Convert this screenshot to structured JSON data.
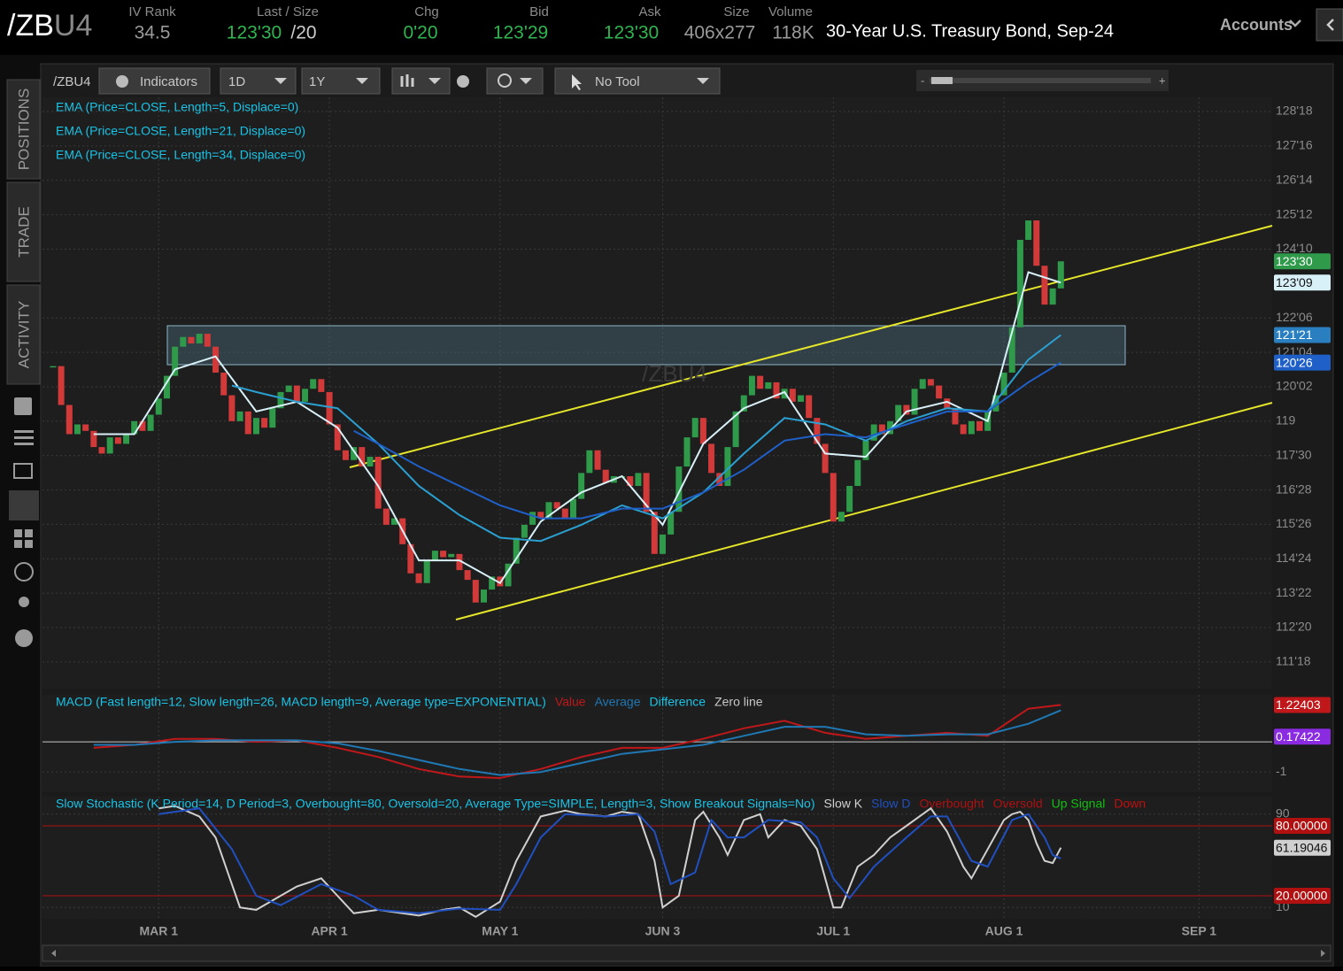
{
  "header": {
    "symbol_root": "/ZB",
    "symbol_month": "U4",
    "fields": [
      {
        "label": "IV Rank",
        "value": "34.5"
      },
      {
        "label": "Last / Size",
        "value": "123'30",
        "extra": "/20"
      },
      {
        "label": "Chg",
        "value": "0'20"
      },
      {
        "label": "Bid",
        "value": "123'29"
      },
      {
        "label": "Ask",
        "value": "123'30"
      },
      {
        "label": "Size",
        "value": "406x277"
      },
      {
        "label": "Volume",
        "value": "118K"
      }
    ],
    "description": "30-Year U.S. Treasury Bond, Sep-24",
    "accounts": "Accounts"
  },
  "toolbar": {
    "symbol": "/ZBU4",
    "indicators": "Indicators",
    "aggregation": "1D",
    "range": "1Y",
    "tool": "No Tool",
    "zoom_out": "-",
    "zoom_in": "+"
  },
  "sidebar": [
    "POSITIONS",
    "TRADE",
    "ACTIVITY"
  ],
  "chart_data": [
    {
      "type": "candlestick",
      "watermark": "/ZBU4",
      "up_color": "#2e9a4a",
      "down_color": "#d23a3a",
      "xlim": [
        -1.3,
        150
      ],
      "ylim": [
        110.74,
        129.0
      ],
      "grid": true,
      "yticks": [
        {
          "value": 128.5625,
          "label": "128'18"
        },
        {
          "value": 127.5,
          "label": "127'16"
        },
        {
          "value": 126.4375,
          "label": "126'14"
        },
        {
          "value": 125.375,
          "label": "125'12"
        },
        {
          "value": 124.3125,
          "label": "124'10"
        },
        {
          "value": 122.1875,
          "label": "122'06"
        },
        {
          "value": 121.125,
          "label": "121'04"
        },
        {
          "value": 120.0625,
          "label": "120'02"
        },
        119,
        {
          "value": 117.9375,
          "label": "117'30"
        },
        {
          "value": 116.875,
          "label": "116'28"
        },
        {
          "value": 115.8125,
          "label": "115'26"
        },
        {
          "value": 114.75,
          "label": "114'24"
        },
        {
          "value": 113.6875,
          "label": "113'22"
        },
        {
          "value": 112.625,
          "label": "112'20"
        },
        {
          "value": 111.5625,
          "label": "111'18"
        }
      ],
      "values": [
        120.7,
        119.5,
        118.6,
        118.9,
        118.7,
        118.2,
        118.0,
        118.5,
        118.3,
        118.6,
        119.0,
        118.7,
        119.2,
        119.7,
        120.4,
        121.3,
        121.6,
        121.4,
        121.7,
        121.3,
        120.5,
        119.8,
        119.0,
        119.3,
        118.6,
        119.1,
        118.8,
        119.4,
        119.9,
        120.1,
        119.6,
        120.0,
        120.3,
        119.9,
        118.9,
        118.1,
        117.8,
        118.2,
        117.6,
        117.9,
        116.3,
        115.8,
        116.0,
        115.2,
        114.3,
        114.0,
        114.7,
        115.0,
        114.8,
        114.9,
        114.4,
        114.1,
        113.4,
        113.8,
        114.2,
        113.9,
        114.6,
        115.4,
        115.8,
        116.2,
        116.0,
        116.5,
        116.3,
        116.0,
        116.6,
        117.4,
        118.1,
        117.5,
        117.1,
        117.3,
        117.3,
        117.0,
        117.4,
        116.2,
        114.9,
        115.5,
        116.2,
        117.6,
        118.5,
        119.1,
        118.3,
        117.4,
        117.0,
        118.2,
        119.3,
        119.8,
        120.4,
        120.0,
        120.2,
        119.7,
        120.0,
        119.6,
        119.8,
        119.1,
        118.3,
        117.4,
        115.9,
        116.2,
        117.0,
        117.8,
        118.4,
        118.9,
        118.6,
        119.0,
        119.5,
        119.2,
        120.0,
        120.3,
        120.1,
        119.7,
        119.4,
        118.9,
        118.6,
        119.0,
        118.7,
        119.3,
        119.8,
        120.5,
        121.9,
        124.6,
        125.2,
        123.8,
        122.6,
        123.1,
        123.9375
      ],
      "series": [
        {
          "name": "EMA (Price=CLOSE, Length=5, Displace=0)",
          "color": "#d8f0f8",
          "x": [
            5,
            10,
            15,
            20,
            25,
            30,
            35,
            40,
            45,
            50,
            55,
            60,
            65,
            70,
            75,
            80,
            85,
            90,
            95,
            100,
            105,
            110,
            115,
            120,
            124
          ],
          "values": [
            118.6,
            118.6,
            120.6,
            121.0,
            119.3,
            119.6,
            118.8,
            117.0,
            114.7,
            114.7,
            114.0,
            115.9,
            116.8,
            117.3,
            115.8,
            118.3,
            119.4,
            119.9,
            118.0,
            117.9,
            119.3,
            119.6,
            119.0,
            123.6,
            123.28
          ]
        },
        {
          "name": "EMA (Price=CLOSE, Length=21, Displace=0)",
          "color": "#2a9fd0",
          "x": [
            22,
            25,
            30,
            35,
            40,
            45,
            50,
            55,
            60,
            65,
            70,
            75,
            80,
            85,
            90,
            95,
            100,
            105,
            110,
            115,
            120,
            124
          ],
          "values": [
            120.1,
            119.9,
            119.6,
            119.4,
            118.3,
            117.0,
            116.1,
            115.4,
            115.3,
            115.8,
            116.4,
            116.0,
            116.8,
            118.0,
            119.1,
            118.9,
            118.4,
            119.0,
            119.4,
            119.3,
            120.9,
            121.66
          ]
        },
        {
          "name": "EMA (Price=CLOSE, Length=34, Displace=0)",
          "color": "#1f5fc8",
          "x": [
            37,
            40,
            45,
            50,
            55,
            60,
            65,
            70,
            75,
            80,
            85,
            90,
            95,
            100,
            105,
            110,
            115,
            120,
            124
          ],
          "values": [
            118.7,
            118.3,
            117.6,
            117.0,
            116.4,
            116.0,
            116.0,
            116.3,
            116.3,
            116.8,
            117.5,
            118.4,
            118.6,
            118.5,
            118.9,
            119.3,
            119.3,
            120.2,
            120.81
          ]
        }
      ],
      "markers": [
        {
          "value": 123.9375,
          "label": "123'30",
          "color": "#2e9a4a"
        },
        {
          "value": 123.28,
          "label": "123'09",
          "color": "#d8f0f8"
        },
        {
          "value": 121.66,
          "label": "121'21",
          "color": "#2a7fc0"
        },
        {
          "value": 120.81,
          "label": "120'26",
          "color": "#1f5fc8"
        }
      ]
    },
    {
      "type": "line",
      "title": "MACD (Fast length=12, Slow length=26, MACD length=9, Average type=EXPONENTIAL)",
      "title_color": "#19c3e6",
      "xlim": [
        -1.3,
        150
      ],
      "ylim": [
        -1.67,
        1.56
      ],
      "yticks": [
        -1
      ],
      "zero_line": true,
      "series": [
        {
          "name": "Value",
          "color": "#c0181a",
          "x": [
            5,
            10,
            15,
            20,
            25,
            30,
            35,
            40,
            45,
            50,
            55,
            60,
            65,
            70,
            75,
            80,
            85,
            90,
            95,
            100,
            105,
            110,
            115,
            120,
            124
          ],
          "values": [
            -0.2,
            -0.1,
            0.1,
            0.1,
            0,
            0.05,
            -0.2,
            -0.5,
            -0.9,
            -1.15,
            -1.2,
            -0.9,
            -0.5,
            -0.2,
            -0.2,
            0.1,
            0.45,
            0.7,
            0.3,
            0.1,
            0.2,
            0.3,
            0.2,
            1.1,
            1.22403
          ]
        },
        {
          "name": "Average",
          "color": "#1f78b4",
          "x": [
            5,
            10,
            15,
            20,
            25,
            30,
            35,
            40,
            45,
            50,
            55,
            60,
            65,
            70,
            75,
            80,
            85,
            90,
            95,
            100,
            105,
            110,
            115,
            120,
            124
          ],
          "values": [
            -0.1,
            -0.1,
            0,
            0.05,
            0.05,
            0.05,
            -0.05,
            -0.3,
            -0.6,
            -0.9,
            -1.1,
            -1.0,
            -0.7,
            -0.4,
            -0.25,
            -0.1,
            0.2,
            0.5,
            0.5,
            0.25,
            0.2,
            0.25,
            0.25,
            0.6,
            1.05
          ]
        }
      ],
      "legend_extras": [
        {
          "name": "Difference",
          "color": "#19c3e6"
        },
        {
          "name": "Zero line",
          "color": "#c8c8c8"
        }
      ],
      "markers": [
        {
          "value": 1.22403,
          "label": "1.22403",
          "color": "#c0181a"
        },
        {
          "value": 0.17422,
          "label": "0.17422",
          "color": "#8a2be2"
        }
      ]
    },
    {
      "type": "line",
      "title": "Slow Stochastic (K Period=14, D Period=3, Overbought=80, Oversold=20, Average Type=SIMPLE, Length=3, Show Breakout Signals=No)",
      "title_color": "#19c3e6",
      "xlim": [
        -1.3,
        150
      ],
      "ylim": [
        0.3,
        105
      ],
      "yticks": [
        10,
        90
      ],
      "xticks": [
        {
          "value": 13,
          "label": "MAR 1"
        },
        {
          "value": 34,
          "label": "APR 1"
        },
        {
          "value": 55,
          "label": "MAY 1"
        },
        {
          "value": 75,
          "label": "JUN 3"
        },
        {
          "value": 96,
          "label": "JUL 1"
        },
        {
          "value": 117,
          "label": "AUG 1"
        },
        {
          "value": 141,
          "label": "SEP 1"
        }
      ],
      "series": [
        {
          "name": "Slow K",
          "color": "#d0d0d0",
          "x": [
            13,
            15,
            18,
            20,
            22,
            23,
            25,
            28,
            30,
            33,
            35,
            37,
            40,
            43,
            45,
            48,
            50,
            52,
            55,
            57,
            60,
            63,
            65,
            68,
            70,
            72,
            74,
            75,
            77,
            79,
            80,
            82,
            83,
            85,
            87,
            88,
            90,
            92,
            94,
            96,
            97,
            99,
            101,
            103,
            105,
            107,
            108,
            110,
            112,
            113,
            115,
            117,
            118,
            119,
            120,
            121,
            122,
            123,
            124
          ],
          "values": [
            95,
            97,
            88,
            70,
            30,
            10,
            8,
            20,
            28,
            35,
            20,
            5,
            8,
            5,
            3,
            8,
            10,
            2,
            15,
            50,
            88,
            93,
            90,
            88,
            92,
            90,
            50,
            10,
            20,
            85,
            92,
            70,
            55,
            85,
            90,
            70,
            85,
            80,
            60,
            10,
            10,
            45,
            55,
            70,
            80,
            90,
            95,
            75,
            45,
            35,
            60,
            85,
            90,
            92,
            85,
            65,
            50,
            48,
            61.19046
          ]
        },
        {
          "name": "Slow D",
          "color": "#2050c0",
          "x": [
            13,
            18,
            22,
            25,
            28,
            33,
            37,
            40,
            45,
            50,
            55,
            57,
            60,
            63,
            68,
            72,
            74,
            76,
            79,
            81,
            83,
            85,
            88,
            92,
            94,
            96,
            98,
            101,
            105,
            108,
            110,
            113,
            115,
            118,
            120,
            122,
            123,
            124
          ],
          "values": [
            90,
            95,
            60,
            20,
            12,
            30,
            20,
            8,
            5,
            9,
            8,
            30,
            70,
            90,
            88,
            90,
            75,
            30,
            40,
            85,
            70,
            70,
            85,
            83,
            70,
            35,
            18,
            45,
            70,
            88,
            88,
            50,
            45,
            85,
            90,
            70,
            55,
            52
          ]
        }
      ],
      "legend_extras": [
        {
          "name": "Overbought",
          "color": "#b01010"
        },
        {
          "name": "Oversold",
          "color": "#b01010"
        },
        {
          "name": "Up Signal",
          "color": "#10c010"
        },
        {
          "name": "Down",
          "color": "#c01010"
        }
      ],
      "levels": [
        {
          "value": 80,
          "label": "80.00000",
          "color": "#b01010"
        },
        {
          "value": 20,
          "label": "20.00000",
          "color": "#b01010"
        }
      ],
      "markers": [
        {
          "value": 61.19046,
          "label": "61.19046",
          "color": "#d0d0d0"
        }
      ]
    }
  ]
}
